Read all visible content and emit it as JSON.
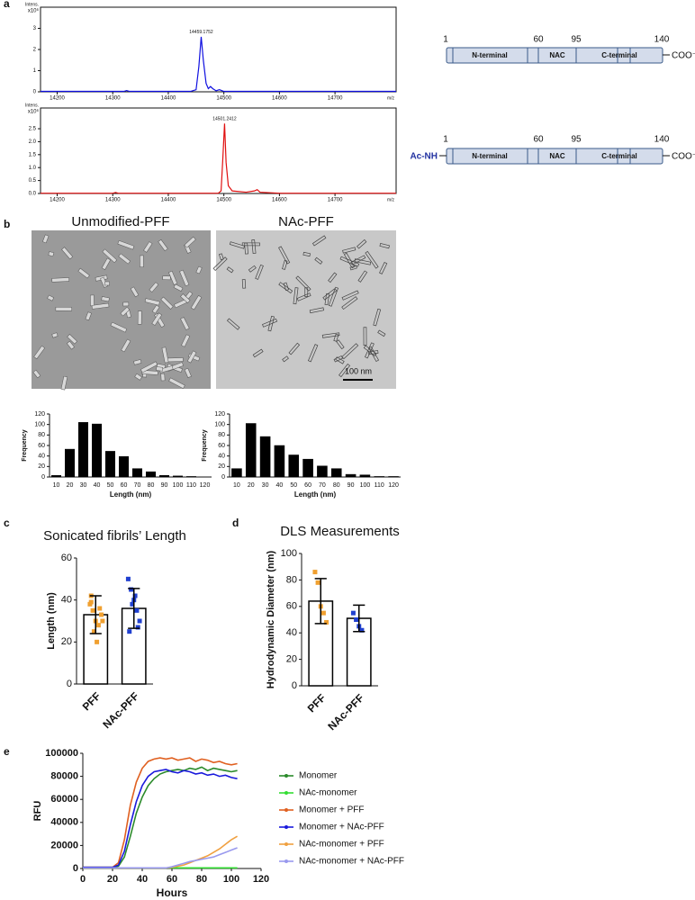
{
  "panel_labels": [
    "a",
    "b",
    "c",
    "d",
    "e"
  ],
  "protein_diagrams": [
    {
      "positions": [
        "1",
        "60",
        "95",
        "140"
      ],
      "domains": [
        "N-terminal",
        "NAC",
        "C-terminal"
      ],
      "c_term": "COO⁻"
    },
    {
      "n_term": "Ac-NH",
      "positions": [
        "1",
        "60",
        "95",
        "140"
      ],
      "domains": [
        "N-terminal",
        "NAC",
        "C-terminal"
      ],
      "c_term": "COO⁻"
    }
  ],
  "micrographs": [
    {
      "title": "Unmodified-PFF"
    },
    {
      "title": "NAc-PFF",
      "scale_bar": "100 nm"
    }
  ],
  "chart_data": [
    {
      "type": "line",
      "y_label": "Intens.",
      "y_unit": "x10⁶",
      "x_label": "m/z",
      "annotation": "14459.1752",
      "color": "#1010e0",
      "x": [
        14170,
        14320,
        14325,
        14330,
        14440,
        14450,
        14455,
        14459.1752,
        14463,
        14468,
        14472,
        14476,
        14480,
        14486,
        14492,
        14500,
        14810
      ],
      "values": [
        0.02,
        0.02,
        0.06,
        0.02,
        0.02,
        0.1,
        1.2,
        2.6,
        1.5,
        0.4,
        0.15,
        0.25,
        0.15,
        0.05,
        0.1,
        0.02,
        0.02
      ],
      "xlim": [
        14170,
        14810
      ],
      "xticks": [
        14200,
        14300,
        14400,
        14500,
        14600,
        14700
      ],
      "ylim": [
        0,
        4
      ],
      "yticks": [
        0,
        1,
        2,
        3
      ]
    },
    {
      "type": "line",
      "y_label": "Intens.",
      "y_unit": "x10⁶",
      "x_label": "m/z",
      "annotation": "14501.2412",
      "color": "#e01010",
      "x": [
        14170,
        14300,
        14305,
        14310,
        14490,
        14495,
        14498,
        14501.2412,
        14504,
        14508,
        14515,
        14540,
        14555,
        14560,
        14565,
        14600,
        14810
      ],
      "values": [
        0.01,
        0.01,
        0.04,
        0.01,
        0.01,
        0.1,
        1.3,
        2.7,
        1.2,
        0.3,
        0.1,
        0.05,
        0.1,
        0.15,
        0.05,
        0.01,
        0.01
      ],
      "xlim": [
        14170,
        14810
      ],
      "xticks": [
        14200,
        14300,
        14400,
        14500,
        14600,
        14700
      ],
      "ylim": [
        0,
        3.3
      ],
      "yticks": [
        {
          "value": 0,
          "label": "0.0"
        },
        0.5,
        {
          "value": 1,
          "label": "1.0"
        },
        1.5,
        {
          "value": 2,
          "label": "2.0"
        },
        2.5
      ]
    },
    {
      "type": "bar",
      "x_label": "Length (nm)",
      "y_label": "Frequency",
      "color": "#000000",
      "categories": [
        "10",
        "20",
        "30",
        "40",
        "50",
        "60",
        "70",
        "80",
        "90",
        "100",
        "110",
        "120"
      ],
      "values": [
        3,
        53,
        104,
        101,
        49,
        39,
        16,
        10,
        3,
        2,
        1,
        0
      ],
      "ylim": [
        0,
        120
      ],
      "yticks": [
        0,
        20,
        40,
        60,
        80,
        100,
        120
      ]
    },
    {
      "type": "bar",
      "x_label": "Length (nm)",
      "y_label": "Frequency",
      "color": "#000000",
      "categories": [
        "10",
        "20",
        "30",
        "40",
        "50",
        "60",
        "70",
        "80",
        "90",
        "100",
        "110",
        "120"
      ],
      "values": [
        16,
        102,
        77,
        60,
        42,
        34,
        21,
        16,
        5,
        4,
        1,
        1
      ],
      "ylim": [
        0,
        120
      ],
      "yticks": [
        0,
        20,
        40,
        60,
        80,
        100,
        120
      ]
    },
    {
      "type": "bar",
      "title": "Sonicated fibrils’ Length",
      "y_label": "Length (nm)",
      "color": "#ffffff",
      "categories": [
        "PFF",
        "NAc-PFF"
      ],
      "values": [
        33,
        36
      ],
      "errors": [
        9,
        9.5
      ],
      "points": [
        [
          38,
          35,
          30,
          28,
          33,
          42,
          25,
          20,
          36,
          30,
          39
        ],
        [
          50,
          45,
          40,
          35,
          30,
          25,
          38,
          42,
          27
        ]
      ],
      "point_colors": [
        "#f0a030",
        "#2040d0"
      ],
      "ylim": [
        0,
        60
      ],
      "yticks": [
        0,
        20,
        40,
        60
      ]
    },
    {
      "type": "bar",
      "title": "DLS Measurements",
      "y_label": "Hydrodynamic Diameter (nm)",
      "color": "#ffffff",
      "categories": [
        "PFF",
        "NAc-PFF"
      ],
      "values": [
        64,
        51
      ],
      "errors": [
        17,
        10
      ],
      "points": [
        [
          86,
          78,
          60,
          55,
          48
        ],
        [
          55,
          50,
          45,
          42
        ]
      ],
      "point_colors": [
        "#f0a030",
        "#2040d0"
      ],
      "ylim": [
        0,
        100
      ],
      "yticks": [
        0,
        20,
        40,
        60,
        80,
        100
      ]
    },
    {
      "type": "line",
      "x_label": "Hours",
      "y_label": "RFU",
      "x": [
        0,
        4,
        8,
        12,
        16,
        20,
        24,
        28,
        32,
        36,
        40,
        44,
        48,
        52,
        56,
        60,
        64,
        68,
        72,
        76,
        80,
        84,
        88,
        92,
        96,
        100,
        104
      ],
      "xlim": [
        0,
        120
      ],
      "xticks": [
        0,
        20,
        40,
        60,
        80,
        100,
        120
      ],
      "ylim": [
        0,
        100000
      ],
      "yticks": [
        0,
        20000,
        40000,
        60000,
        80000,
        100000
      ],
      "series": [
        {
          "name": "Monomer",
          "color": "#2a8a2a",
          "values": [
            1000,
            1000,
            1000,
            1000,
            1000,
            1000,
            2000,
            10000,
            28000,
            48000,
            62000,
            72000,
            78000,
            82000,
            84000,
            85000,
            86000,
            85000,
            87000,
            86000,
            88000,
            85000,
            87000,
            86000,
            85000,
            84000,
            85000
          ]
        },
        {
          "name": "NAc-monomer",
          "color": "#33dd33",
          "values": [
            500,
            500,
            500,
            500,
            500,
            500,
            500,
            500,
            500,
            500,
            500,
            500,
            500,
            500,
            500,
            500,
            500,
            500,
            500,
            500,
            500,
            500,
            500,
            500,
            500,
            500,
            500
          ]
        },
        {
          "name": "Monomer + PFF",
          "color": "#e06020",
          "values": [
            1000,
            1000,
            1000,
            1000,
            1000,
            1000,
            5000,
            25000,
            55000,
            75000,
            87000,
            93000,
            95000,
            96000,
            95000,
            96000,
            94000,
            95000,
            96000,
            93000,
            95000,
            94000,
            92000,
            93000,
            91000,
            90000,
            91000
          ]
        },
        {
          "name": "Monomer + NAc-PFF",
          "color": "#1a1adc",
          "values": [
            1000,
            1000,
            1000,
            1000,
            1000,
            1000,
            3000,
            15000,
            38000,
            58000,
            72000,
            80000,
            84000,
            85000,
            86000,
            84000,
            83000,
            85000,
            84000,
            82000,
            83000,
            81000,
            82000,
            80000,
            81000,
            79000,
            78000
          ]
        },
        {
          "name": "NAc-monomer + PFF",
          "color": "#f0a040",
          "values": [
            500,
            500,
            500,
            500,
            500,
            500,
            500,
            500,
            500,
            500,
            500,
            500,
            500,
            500,
            500,
            1000,
            2000,
            3000,
            5000,
            7000,
            9000,
            11000,
            14000,
            17000,
            21000,
            25000,
            28000
          ]
        },
        {
          "name": "NAc-monomer + NAc-PFF",
          "color": "#9999ee",
          "values": [
            500,
            500,
            500,
            500,
            500,
            500,
            500,
            500,
            500,
            500,
            500,
            500,
            500,
            500,
            500,
            1500,
            3000,
            4500,
            6000,
            7000,
            8000,
            9000,
            10000,
            12000,
            14000,
            16000,
            18000
          ]
        }
      ]
    }
  ]
}
